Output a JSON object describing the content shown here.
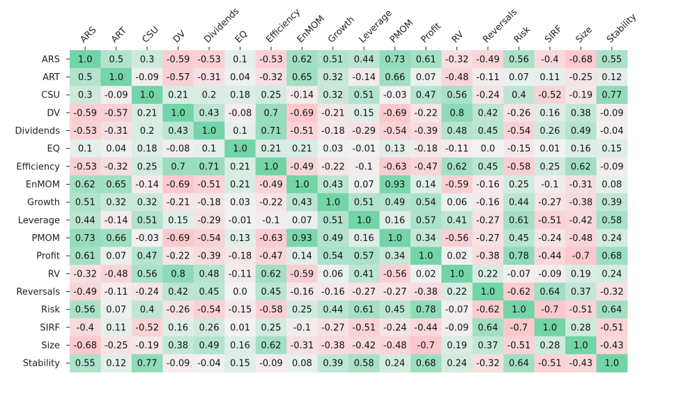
{
  "chart_data": {
    "type": "heatmap",
    "title": "",
    "xlabel": "",
    "ylabel": "",
    "labels": [
      "ARS",
      "ART",
      "CSU",
      "DV",
      "Dividends",
      "EQ",
      "Efficiency",
      "EnMOM",
      "Growth",
      "Leverage",
      "PMOM",
      "Profit",
      "RV",
      "Reversals",
      "Risk",
      "SIRF",
      "Size",
      "Stability"
    ],
    "x_tick_position": "top",
    "x_tick_rotation": 45,
    "value_range": [
      -1,
      1
    ],
    "colors": {
      "positive": "#73d4a8",
      "negative": "#ffb6bd",
      "neutral": "#f2f2f2"
    },
    "values": [
      [
        "1.0",
        "0.5",
        "0.3",
        "-0.59",
        "-0.53",
        "0.1",
        "-0.53",
        "0.62",
        "0.51",
        "0.44",
        "0.73",
        "0.61",
        "-0.32",
        "-0.49",
        "0.56",
        "-0.4",
        "-0.68",
        "0.55"
      ],
      [
        "0.5",
        "1.0",
        "-0.09",
        "-0.57",
        "-0.31",
        "0.04",
        "-0.32",
        "0.65",
        "0.32",
        "-0.14",
        "0.66",
        "0.07",
        "-0.48",
        "-0.11",
        "0.07",
        "0.11",
        "-0.25",
        "0.12"
      ],
      [
        "0.3",
        "-0.09",
        "1.0",
        "0.21",
        "0.2",
        "0.18",
        "0.25",
        "-0.14",
        "0.32",
        "0.51",
        "-0.03",
        "0.47",
        "0.56",
        "-0.24",
        "0.4",
        "-0.52",
        "-0.19",
        "0.77"
      ],
      [
        "-0.59",
        "-0.57",
        "0.21",
        "1.0",
        "0.43",
        "-0.08",
        "0.7",
        "-0.69",
        "-0.21",
        "0.15",
        "-0.69",
        "-0.22",
        "0.8",
        "0.42",
        "-0.26",
        "0.16",
        "0.38",
        "-0.09"
      ],
      [
        "-0.53",
        "-0.31",
        "0.2",
        "0.43",
        "1.0",
        "0.1",
        "0.71",
        "-0.51",
        "-0.18",
        "-0.29",
        "-0.54",
        "-0.39",
        "0.48",
        "0.45",
        "-0.54",
        "0.26",
        "0.49",
        "-0.04"
      ],
      [
        "0.1",
        "0.04",
        "0.18",
        "-0.08",
        "0.1",
        "1.0",
        "0.21",
        "0.21",
        "0.03",
        "-0.01",
        "0.13",
        "-0.18",
        "-0.11",
        "0.0",
        "-0.15",
        "0.01",
        "0.16",
        "0.15"
      ],
      [
        "-0.53",
        "-0.32",
        "0.25",
        "0.7",
        "0.71",
        "0.21",
        "1.0",
        "-0.49",
        "-0.22",
        "-0.1",
        "-0.63",
        "-0.47",
        "0.62",
        "0.45",
        "-0.58",
        "0.25",
        "0.62",
        "-0.09"
      ],
      [
        "0.62",
        "0.65",
        "-0.14",
        "-0.69",
        "-0.51",
        "0.21",
        "-0.49",
        "1.0",
        "0.43",
        "0.07",
        "0.93",
        "0.14",
        "-0.59",
        "-0.16",
        "0.25",
        "-0.1",
        "-0.31",
        "0.08"
      ],
      [
        "0.51",
        "0.32",
        "0.32",
        "-0.21",
        "-0.18",
        "0.03",
        "-0.22",
        "0.43",
        "1.0",
        "0.51",
        "0.49",
        "0.54",
        "0.06",
        "-0.16",
        "0.44",
        "-0.27",
        "-0.38",
        "0.39"
      ],
      [
        "0.44",
        "-0.14",
        "0.51",
        "0.15",
        "-0.29",
        "-0.01",
        "-0.1",
        "0.07",
        "0.51",
        "1.0",
        "0.16",
        "0.57",
        "0.41",
        "-0.27",
        "0.61",
        "-0.51",
        "-0.42",
        "0.58"
      ],
      [
        "0.73",
        "0.66",
        "-0.03",
        "-0.69",
        "-0.54",
        "0.13",
        "-0.63",
        "0.93",
        "0.49",
        "0.16",
        "1.0",
        "0.34",
        "-0.56",
        "-0.27",
        "0.45",
        "-0.24",
        "-0.48",
        "0.24"
      ],
      [
        "0.61",
        "0.07",
        "0.47",
        "-0.22",
        "-0.39",
        "-0.18",
        "-0.47",
        "0.14",
        "0.54",
        "0.57",
        "0.34",
        "1.0",
        "0.02",
        "-0.38",
        "0.78",
        "-0.44",
        "-0.7",
        "0.68"
      ],
      [
        "-0.32",
        "-0.48",
        "0.56",
        "0.8",
        "0.48",
        "-0.11",
        "0.62",
        "-0.59",
        "0.06",
        "0.41",
        "-0.56",
        "0.02",
        "1.0",
        "0.22",
        "-0.07",
        "-0.09",
        "0.19",
        "0.24"
      ],
      [
        "-0.49",
        "-0.11",
        "-0.24",
        "0.42",
        "0.45",
        "0.0",
        "0.45",
        "-0.16",
        "-0.16",
        "-0.27",
        "-0.27",
        "-0.38",
        "0.22",
        "1.0",
        "-0.62",
        "0.64",
        "0.37",
        "-0.32"
      ],
      [
        "0.56",
        "0.07",
        "0.4",
        "-0.26",
        "-0.54",
        "-0.15",
        "-0.58",
        "0.25",
        "0.44",
        "0.61",
        "0.45",
        "0.78",
        "-0.07",
        "-0.62",
        "1.0",
        "-0.7",
        "-0.51",
        "0.64"
      ],
      [
        "-0.4",
        "0.11",
        "-0.52",
        "0.16",
        "0.26",
        "0.01",
        "0.25",
        "-0.1",
        "-0.27",
        "-0.51",
        "-0.24",
        "-0.44",
        "-0.09",
        "0.64",
        "-0.7",
        "1.0",
        "0.28",
        "-0.51"
      ],
      [
        "-0.68",
        "-0.25",
        "-0.19",
        "0.38",
        "0.49",
        "0.16",
        "0.62",
        "-0.31",
        "-0.38",
        "-0.42",
        "-0.48",
        "-0.7",
        "0.19",
        "0.37",
        "-0.51",
        "0.28",
        "1.0",
        "-0.43"
      ],
      [
        "0.55",
        "0.12",
        "0.77",
        "-0.09",
        "-0.04",
        "0.15",
        "-0.09",
        "0.08",
        "0.39",
        "0.58",
        "0.24",
        "0.68",
        "0.24",
        "-0.32",
        "0.64",
        "-0.51",
        "-0.43",
        "1.0"
      ]
    ]
  }
}
